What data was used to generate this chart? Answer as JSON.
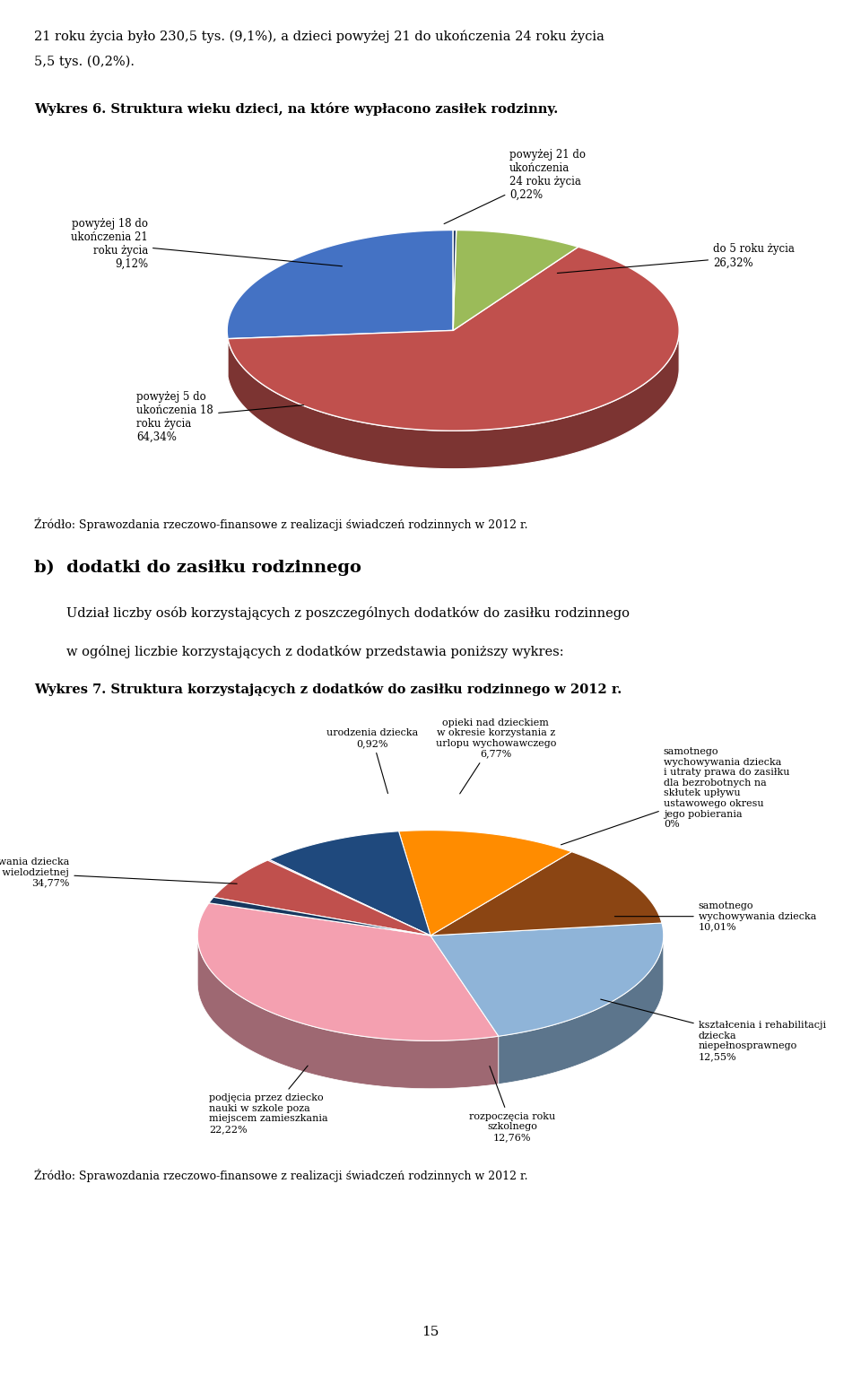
{
  "page_texts_line1": "21 roku życia było 230,5 tys. (9,1%), a dzieci powyżej 21 do ukończenia 24 roku życia",
  "page_texts_line2": "5,5 tys. (0,2%).",
  "chart1_title": "Wykres 6. Struktura wieku dzieci, na które wypłacono zasiłek rodzinny.",
  "chart1_values": [
    26.32,
    64.34,
    9.12,
    0.22
  ],
  "chart1_colors": [
    "#4472C4",
    "#C0504D",
    "#9BBB59",
    "#1F3864"
  ],
  "chart1_source": "Źródło: Sprawozdania rzeczowo-finansowe z realizacji świadczeń rodzinnych w 2012 r.",
  "section_b_title": "b)  dodatki do zasiłku rodzinnego",
  "section_b_text1": "Udział liczby osób korzystających z poszczególnych dodatków do zasiłku rodzinnego",
  "section_b_text2": "w ogólnej liczbie korzystających z dodatków przedstawia poniższy wykres:",
  "chart2_title": "Wykres 7. Struktura korzystających z dodatków do zasiłku rodzinnego w 2012 r.",
  "chart2_values": [
    34.77,
    22.22,
    12.76,
    12.55,
    10.01,
    0.01,
    6.77,
    0.92,
    0.0
  ],
  "chart2_colors": [
    "#F4A0B0",
    "#8FB4D8",
    "#8B4513",
    "#FF8C00",
    "#1F497D",
    "#7030A0",
    "#C0504D",
    "#17375E",
    "#70AD47"
  ],
  "chart2_source": "Źródło: Sprawozdania rzeczowo-finansowe z realizacji świadczeń rodzinnych w 2012 r.",
  "footer_page": "15"
}
